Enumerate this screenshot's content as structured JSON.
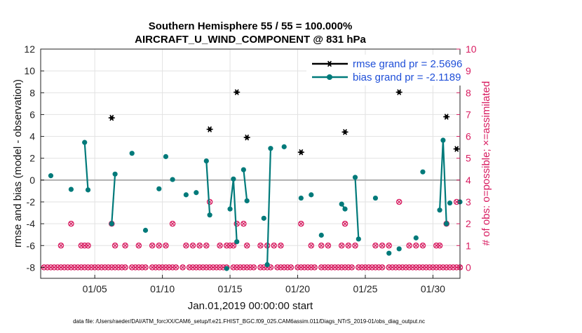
{
  "chart_data": {
    "type": "scatter",
    "title_line1": "Southern Hemisphere 55 / 55 = 100.000%",
    "title_line2": "AIRCRAFT_U_WIND_COMPONENT @ 831 hPa",
    "xlabel": "Jan.01,2019 00:00:00 start",
    "ylabel": "rmse and bias (model - observation)",
    "ylabel_right": "# of obs: o=possible; ×=assimilated",
    "xlim": [
      1.0,
      32.0
    ],
    "ylim": [
      -9,
      12
    ],
    "ylim_right": [
      0,
      10
    ],
    "x_ticks": [
      5,
      10,
      15,
      20,
      25,
      30
    ],
    "x_tick_labels": [
      "01/05",
      "01/10",
      "01/15",
      "01/20",
      "01/25",
      "01/30"
    ],
    "y_ticks": [
      -8,
      -6,
      -4,
      -2,
      0,
      2,
      4,
      6,
      8,
      10,
      12
    ],
    "y_ticks_right": [
      0,
      1,
      2,
      3,
      4,
      5,
      6,
      7,
      8,
      9,
      10
    ],
    "grid": true,
    "legend_position": "top-right",
    "footer": "data file: /Users/raeder/DAI/ATM_forcXX/CAM6_setup/f.e21.FHIST_BGC.f09_025.CAM6assim.011/Diags_NTrS_2019-01/obs_diag_output.nc",
    "colors": {
      "rmse": "#000000",
      "bias": "#007a7a",
      "obs": "#d81b60",
      "zero_line": "#b0b0b0",
      "legend_text": "#1f4fd8",
      "right_axis": "#d81b60"
    },
    "series": [
      {
        "name": "rmse grand pr = 2.5696",
        "marker": "star",
        "color": "#000000",
        "points": [
          [
            6.25,
            5.7
          ],
          [
            13.5,
            4.65
          ],
          [
            15.5,
            8.05
          ],
          [
            16.25,
            3.9
          ],
          [
            20.25,
            2.55
          ],
          [
            23.5,
            4.4
          ],
          [
            27.5,
            8.05
          ],
          [
            31.0,
            5.8
          ],
          [
            31.75,
            2.85
          ]
        ]
      },
      {
        "name": "bias grand pr = -2.1189",
        "marker": "dot",
        "color": "#007a7a",
        "points": [
          [
            1.75,
            0.4
          ],
          [
            3.25,
            -0.85
          ],
          [
            4.25,
            3.45
          ],
          [
            4.5,
            -0.9
          ],
          [
            6.25,
            -4.0
          ],
          [
            6.5,
            0.55
          ],
          [
            7.75,
            2.45
          ],
          [
            8.75,
            -4.6
          ],
          [
            9.75,
            -0.8
          ],
          [
            10.25,
            2.15
          ],
          [
            10.75,
            0.05
          ],
          [
            11.75,
            -1.35
          ],
          [
            12.5,
            -1.15
          ],
          [
            13.25,
            1.75
          ],
          [
            13.5,
            -3.2
          ],
          [
            14.75,
            -8.1
          ],
          [
            15.0,
            -2.65
          ],
          [
            15.25,
            0.1
          ],
          [
            15.5,
            -5.65
          ],
          [
            16.0,
            0.95
          ],
          [
            16.25,
            -1.9
          ],
          [
            17.5,
            -3.5
          ],
          [
            17.75,
            -7.75
          ],
          [
            18.0,
            2.9
          ],
          [
            19.0,
            3.05
          ],
          [
            20.25,
            -1.65
          ],
          [
            21.0,
            -1.35
          ],
          [
            21.75,
            -5.05
          ],
          [
            23.25,
            -2.2
          ],
          [
            23.5,
            -2.65
          ],
          [
            24.25,
            0.25
          ],
          [
            24.5,
            -5.4
          ],
          [
            25.75,
            -1.65
          ],
          [
            26.75,
            -6.7
          ],
          [
            27.5,
            -6.3
          ],
          [
            28.75,
            -5.3
          ],
          [
            29.25,
            0.75
          ],
          [
            30.5,
            -2.75
          ],
          [
            30.75,
            3.65
          ],
          [
            31.0,
            -4.0
          ],
          [
            31.25,
            -2.1
          ],
          [
            32.0,
            -2.0
          ]
        ],
        "lines": [
          [
            [
              4.25,
              3.45
            ],
            [
              4.5,
              -0.9
            ]
          ],
          [
            [
              6.25,
              -4.0
            ],
            [
              6.5,
              0.55
            ]
          ],
          [
            [
              13.25,
              1.75
            ],
            [
              13.5,
              -3.2
            ]
          ],
          [
            [
              15.0,
              -2.65
            ],
            [
              15.25,
              0.1
            ],
            [
              15.5,
              -5.65
            ]
          ],
          [
            [
              16.0,
              0.95
            ],
            [
              16.25,
              -1.9
            ]
          ],
          [
            [
              17.75,
              -7.75
            ],
            [
              18.0,
              2.9
            ]
          ],
          [
            [
              23.25,
              -2.2
            ],
            [
              23.5,
              -2.65
            ]
          ],
          [
            [
              24.25,
              0.25
            ],
            [
              24.5,
              -5.4
            ]
          ],
          [
            [
              30.5,
              -2.75
            ],
            [
              30.75,
              3.65
            ],
            [
              31.0,
              -4.0
            ]
          ]
        ]
      },
      {
        "name": "obs possible",
        "axis": "right",
        "marker": "circle",
        "color": "#d81b60",
        "x": [
          1.25,
          1.5,
          1.75,
          2.0,
          2.25,
          2.5,
          2.75,
          3.0,
          3.25,
          3.5,
          3.75,
          4.0,
          4.25,
          4.5,
          4.75,
          5.0,
          5.25,
          5.5,
          5.75,
          6.0,
          6.25,
          6.5,
          6.75,
          7.0,
          7.25,
          7.75,
          8.0,
          8.25,
          8.5,
          8.75,
          9.25,
          9.5,
          9.75,
          10.0,
          10.25,
          10.5,
          10.75,
          11.0,
          11.5,
          12.0,
          12.25,
          12.5,
          12.75,
          13.0,
          13.25,
          13.5,
          13.75,
          14.0,
          14.25,
          14.5,
          14.75,
          15.25,
          15.5,
          15.75,
          16.0,
          16.25,
          16.5,
          16.75,
          17.25,
          17.5,
          17.75,
          18.0,
          18.5,
          18.75,
          19.0,
          19.25,
          19.5,
          20.0,
          20.25,
          20.5,
          20.75,
          21.0,
          21.25,
          21.75,
          22.0,
          22.25,
          22.5,
          22.75,
          23.0,
          23.25,
          23.5,
          23.75,
          24.0,
          24.5,
          24.75,
          25.0,
          25.25,
          25.5,
          25.75,
          26.0,
          26.25,
          26.75,
          27.0,
          27.25,
          27.5,
          27.75,
          28.0,
          28.25,
          28.5,
          28.75,
          29.0,
          29.25,
          29.5,
          29.75,
          30.0,
          30.25,
          30.5,
          30.75,
          31.0,
          31.25,
          31.5,
          31.75,
          32.0
        ],
        "y": [
          0,
          0,
          0,
          0,
          0,
          0,
          0,
          0,
          0,
          0,
          0,
          0,
          0,
          0,
          0,
          0,
          0,
          0,
          0,
          0,
          0,
          0,
          0,
          0,
          0,
          0,
          0,
          0,
          0,
          0,
          0,
          0,
          0,
          0,
          0,
          0,
          0,
          0,
          0,
          0,
          0,
          0,
          0,
          0,
          0,
          0,
          0,
          0,
          0,
          0,
          0,
          0,
          0,
          0,
          0,
          0,
          0,
          0,
          0,
          0,
          0,
          0,
          0,
          0,
          0,
          0,
          0,
          0,
          0,
          0,
          0,
          0,
          0,
          0,
          0,
          0,
          0,
          0,
          0,
          0,
          0,
          0,
          0,
          0,
          0,
          0,
          0,
          0,
          0,
          0,
          0,
          0,
          0,
          0,
          0,
          0,
          0,
          0,
          0,
          0,
          0,
          0,
          0,
          0,
          0,
          0,
          0,
          0,
          0,
          0,
          0,
          0,
          0
        ]
      },
      {
        "name": "obs assimilated",
        "axis": "right",
        "marker": "cross",
        "color": "#d81b60",
        "points": [
          [
            2.5,
            1
          ],
          [
            3.25,
            2
          ],
          [
            4.0,
            1
          ],
          [
            4.25,
            1
          ],
          [
            4.5,
            1
          ],
          [
            6.25,
            2
          ],
          [
            6.5,
            1
          ],
          [
            7.25,
            1
          ],
          [
            8.25,
            1
          ],
          [
            9.25,
            1
          ],
          [
            9.75,
            1
          ],
          [
            10.25,
            1
          ],
          [
            10.75,
            2
          ],
          [
            11.75,
            1
          ],
          [
            12.25,
            1
          ],
          [
            12.75,
            1
          ],
          [
            13.25,
            1
          ],
          [
            13.5,
            3
          ],
          [
            14.25,
            1
          ],
          [
            14.75,
            1
          ],
          [
            15.0,
            1
          ],
          [
            15.25,
            1
          ],
          [
            15.5,
            2
          ],
          [
            16.0,
            2
          ],
          [
            16.25,
            1
          ],
          [
            17.25,
            1
          ],
          [
            17.75,
            1
          ],
          [
            18.25,
            1
          ],
          [
            18.75,
            1
          ],
          [
            20.25,
            2
          ],
          [
            21.0,
            1
          ],
          [
            21.75,
            1
          ],
          [
            22.25,
            1
          ],
          [
            23.25,
            1
          ],
          [
            23.5,
            2
          ],
          [
            23.75,
            1
          ],
          [
            24.25,
            1
          ],
          [
            25.75,
            1
          ],
          [
            26.25,
            1
          ],
          [
            26.75,
            1
          ],
          [
            27.5,
            3
          ],
          [
            28.25,
            1
          ],
          [
            28.75,
            1
          ],
          [
            29.25,
            1
          ],
          [
            30.25,
            1
          ],
          [
            30.5,
            1
          ],
          [
            31.0,
            2
          ],
          [
            31.75,
            3
          ]
        ]
      }
    ]
  }
}
